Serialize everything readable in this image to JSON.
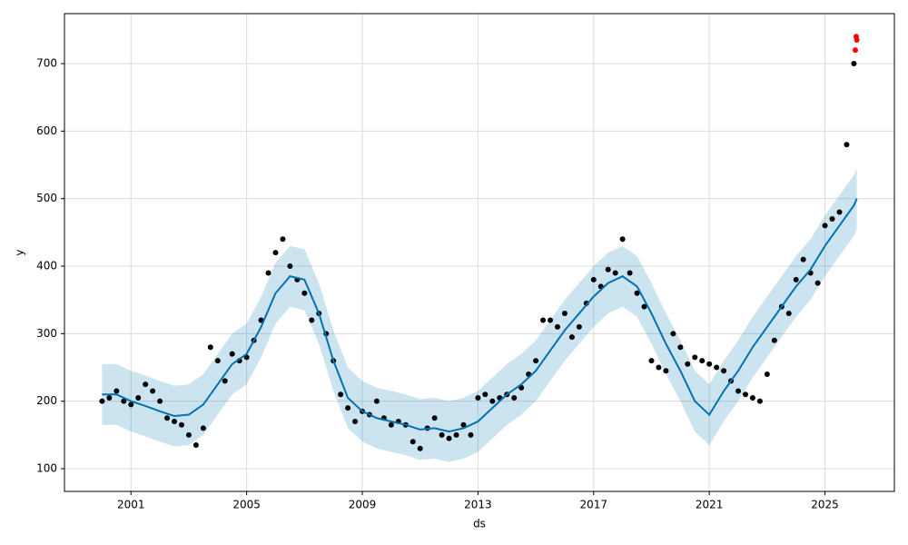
{
  "chart_data": {
    "type": "forecast",
    "x_label": "ds",
    "y_label": "y",
    "xlim": [
      1998.7,
      2027.4
    ],
    "ylim": [
      66.4,
      774
    ],
    "xticks": [
      2001,
      2005,
      2009,
      2013,
      2017,
      2021,
      2025
    ],
    "yticks": [
      100,
      200,
      300,
      400,
      500,
      600,
      700
    ],
    "grid": true,
    "series": [
      {
        "type": "band",
        "color": "#0072B2",
        "x": [
          2000,
          2000.5,
          2001,
          2001.5,
          2002,
          2002.5,
          2003,
          2003.5,
          2004,
          2004.5,
          2005,
          2005.5,
          2006,
          2006.5,
          2007,
          2007.5,
          2008,
          2008.5,
          2009,
          2009.5,
          2010,
          2010.5,
          2011,
          2011.5,
          2012,
          2012.5,
          2013,
          2013.5,
          2014,
          2014.5,
          2015,
          2015.5,
          2016,
          2016.5,
          2017,
          2017.5,
          2018,
          2018.5,
          2019,
          2019.5,
          2020,
          2020.5,
          2021,
          2021.5,
          2022,
          2022.5,
          2023,
          2023.5,
          2024,
          2024.5,
          2025,
          2025.5,
          2026,
          2026.1
        ],
        "lower": [
          165,
          165,
          155,
          148,
          140,
          133,
          135,
          150,
          180,
          210,
          225,
          265,
          315,
          340,
          335,
          285,
          215,
          160,
          140,
          130,
          125,
          120,
          113,
          115,
          110,
          115,
          125,
          145,
          165,
          180,
          200,
          230,
          260,
          285,
          310,
          330,
          340,
          325,
          285,
          240,
          200,
          155,
          135,
          170,
          200,
          235,
          265,
          295,
          325,
          350,
          385,
          415,
          445,
          455
        ],
        "upper": [
          255,
          255,
          245,
          238,
          230,
          223,
          225,
          240,
          270,
          300,
          315,
          355,
          405,
          430,
          425,
          375,
          305,
          250,
          230,
          220,
          215,
          210,
          203,
          205,
          200,
          205,
          215,
          235,
          255,
          270,
          290,
          320,
          350,
          375,
          400,
          420,
          430,
          415,
          375,
          330,
          290,
          245,
          225,
          260,
          290,
          325,
          355,
          385,
          415,
          440,
          475,
          505,
          535,
          545
        ]
      },
      {
        "type": "scatter",
        "color": "#000000",
        "x": [
          2000,
          2000.25,
          2000.5,
          2000.75,
          2001,
          2001.25,
          2001.5,
          2001.75,
          2002,
          2002.25,
          2002.5,
          2002.75,
          2003,
          2003.25,
          2003.5,
          2003.75,
          2004,
          2004.25,
          2004.5,
          2004.75,
          2005,
          2005.25,
          2005.5,
          2005.75,
          2006,
          2006.25,
          2006.5,
          2006.75,
          2007,
          2007.25,
          2007.5,
          2007.75,
          2008,
          2008.25,
          2008.5,
          2008.75,
          2009,
          2009.25,
          2009.5,
          2009.75,
          2010,
          2010.25,
          2010.5,
          2010.75,
          2011,
          2011.25,
          2011.5,
          2011.75,
          2012,
          2012.25,
          2012.5,
          2012.75,
          2013,
          2013.25,
          2013.5,
          2013.75,
          2014,
          2014.25,
          2014.5,
          2014.75,
          2015,
          2015.25,
          2015.5,
          2015.75,
          2016,
          2016.25,
          2016.5,
          2016.75,
          2017,
          2017.25,
          2017.5,
          2017.75,
          2018,
          2018.25,
          2018.5,
          2018.75,
          2019,
          2019.25,
          2019.5,
          2019.75,
          2020,
          2020.25,
          2020.5,
          2020.75,
          2021,
          2021.25,
          2021.5,
          2021.75,
          2022,
          2022.25,
          2022.5,
          2022.75,
          2023,
          2023.25,
          2023.5,
          2023.75,
          2024,
          2024.25,
          2024.5,
          2024.75,
          2025,
          2025.25,
          2025.5,
          2025.75,
          2026
        ],
        "values": [
          200,
          205,
          215,
          200,
          195,
          205,
          225,
          215,
          200,
          175,
          170,
          165,
          150,
          135,
          160,
          280,
          260,
          230,
          270,
          260,
          265,
          290,
          320,
          390,
          420,
          440,
          400,
          380,
          360,
          320,
          330,
          300,
          260,
          210,
          190,
          170,
          185,
          180,
          200,
          175,
          165,
          170,
          165,
          140,
          130,
          160,
          175,
          150,
          145,
          150,
          165,
          150,
          205,
          210,
          200,
          205,
          210,
          205,
          220,
          240,
          260,
          320,
          320,
          310,
          330,
          295,
          310,
          345,
          380,
          370,
          395,
          390,
          440,
          390,
          360,
          340,
          260,
          250,
          245,
          300,
          280,
          255,
          265,
          260,
          255,
          250,
          245,
          230,
          215,
          210,
          205,
          200,
          240,
          290,
          340,
          330,
          380,
          410,
          390,
          375,
          460,
          470,
          480,
          580,
          700
        ]
      },
      {
        "type": "scatter",
        "color": "#ff0000",
        "x": [
          2026.05,
          2026.08,
          2026.1
        ],
        "values": [
          720,
          740,
          735
        ]
      },
      {
        "type": "line",
        "color": "#0072B2",
        "x": [
          2000,
          2000.5,
          2001,
          2001.5,
          2002,
          2002.5,
          2003,
          2003.5,
          2004,
          2004.5,
          2005,
          2005.5,
          2006,
          2006.5,
          2007,
          2007.5,
          2008,
          2008.5,
          2009,
          2009.5,
          2010,
          2010.5,
          2011,
          2011.5,
          2012,
          2012.5,
          2013,
          2013.5,
          2014,
          2014.5,
          2015,
          2015.5,
          2016,
          2016.5,
          2017,
          2017.5,
          2018,
          2018.5,
          2019,
          2019.5,
          2020,
          2020.5,
          2021,
          2021.5,
          2022,
          2022.5,
          2023,
          2023.5,
          2024,
          2024.5,
          2025,
          2025.5,
          2026,
          2026.1
        ],
        "values": [
          210,
          210,
          200,
          193,
          185,
          178,
          180,
          195,
          225,
          255,
          270,
          310,
          360,
          385,
          380,
          330,
          260,
          205,
          185,
          175,
          170,
          165,
          158,
          160,
          155,
          160,
          170,
          190,
          210,
          225,
          245,
          275,
          305,
          330,
          355,
          375,
          385,
          370,
          330,
          285,
          245,
          200,
          180,
          215,
          245,
          280,
          310,
          340,
          370,
          395,
          430,
          460,
          490,
          500
        ]
      }
    ]
  }
}
